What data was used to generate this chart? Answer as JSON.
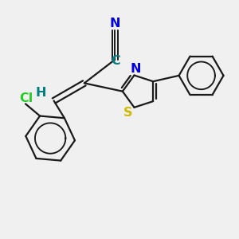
{
  "background_color": "#f0f0f0",
  "bond_color": "#1a1a1a",
  "bond_lw": 1.6,
  "figsize": [
    3.0,
    3.0
  ],
  "dpi": 100,
  "xlim": [
    0,
    10
  ],
  "ylim": [
    0,
    10
  ],
  "N_color": "#0000dd",
  "C_color": "#008080",
  "H_color": "#008080",
  "Cl_color": "#22cc22",
  "S_color": "#ccbb00",
  "N_thz_color": "#0000dd"
}
